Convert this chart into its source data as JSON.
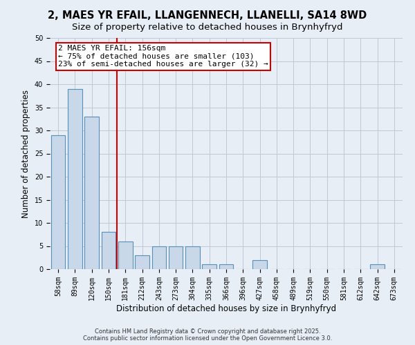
{
  "title_line1": "2, MAES YR EFAIL, LLANGENNECH, LLANELLI, SA14 8WD",
  "title_line2": "Size of property relative to detached houses in Brynhyfryd",
  "xlabel": "Distribution of detached houses by size in Brynhyfryd",
  "ylabel": "Number of detached properties",
  "categories": [
    "58sqm",
    "89sqm",
    "120sqm",
    "150sqm",
    "181sqm",
    "212sqm",
    "243sqm",
    "273sqm",
    "304sqm",
    "335sqm",
    "366sqm",
    "396sqm",
    "427sqm",
    "458sqm",
    "489sqm",
    "519sqm",
    "550sqm",
    "581sqm",
    "612sqm",
    "642sqm",
    "673sqm"
  ],
  "values": [
    29,
    39,
    33,
    8,
    6,
    3,
    5,
    5,
    5,
    1,
    1,
    0,
    2,
    0,
    0,
    0,
    0,
    0,
    0,
    1,
    0
  ],
  "bar_color": "#c8d8e8",
  "bar_edge_color": "#5590bb",
  "bar_linewidth": 0.8,
  "grid_color": "#c0c8d8",
  "background_color": "#e8eef5",
  "redline_color": "#cc0000",
  "annotation_text": "2 MAES YR EFAIL: 156sqm\n← 75% of detached houses are smaller (103)\n23% of semi-detached houses are larger (32) →",
  "annotation_box_color": "#ffffff",
  "annotation_box_edge": "#cc0000",
  "ylim": [
    0,
    50
  ],
  "yticks": [
    0,
    5,
    10,
    15,
    20,
    25,
    30,
    35,
    40,
    45,
    50
  ],
  "footer": "Contains HM Land Registry data © Crown copyright and database right 2025.\nContains public sector information licensed under the Open Government Licence 3.0.",
  "title_fontsize": 10.5,
  "subtitle_fontsize": 9.5,
  "axis_label_fontsize": 8.5,
  "tick_fontsize": 7,
  "annotation_fontsize": 8,
  "footer_fontsize": 6
}
